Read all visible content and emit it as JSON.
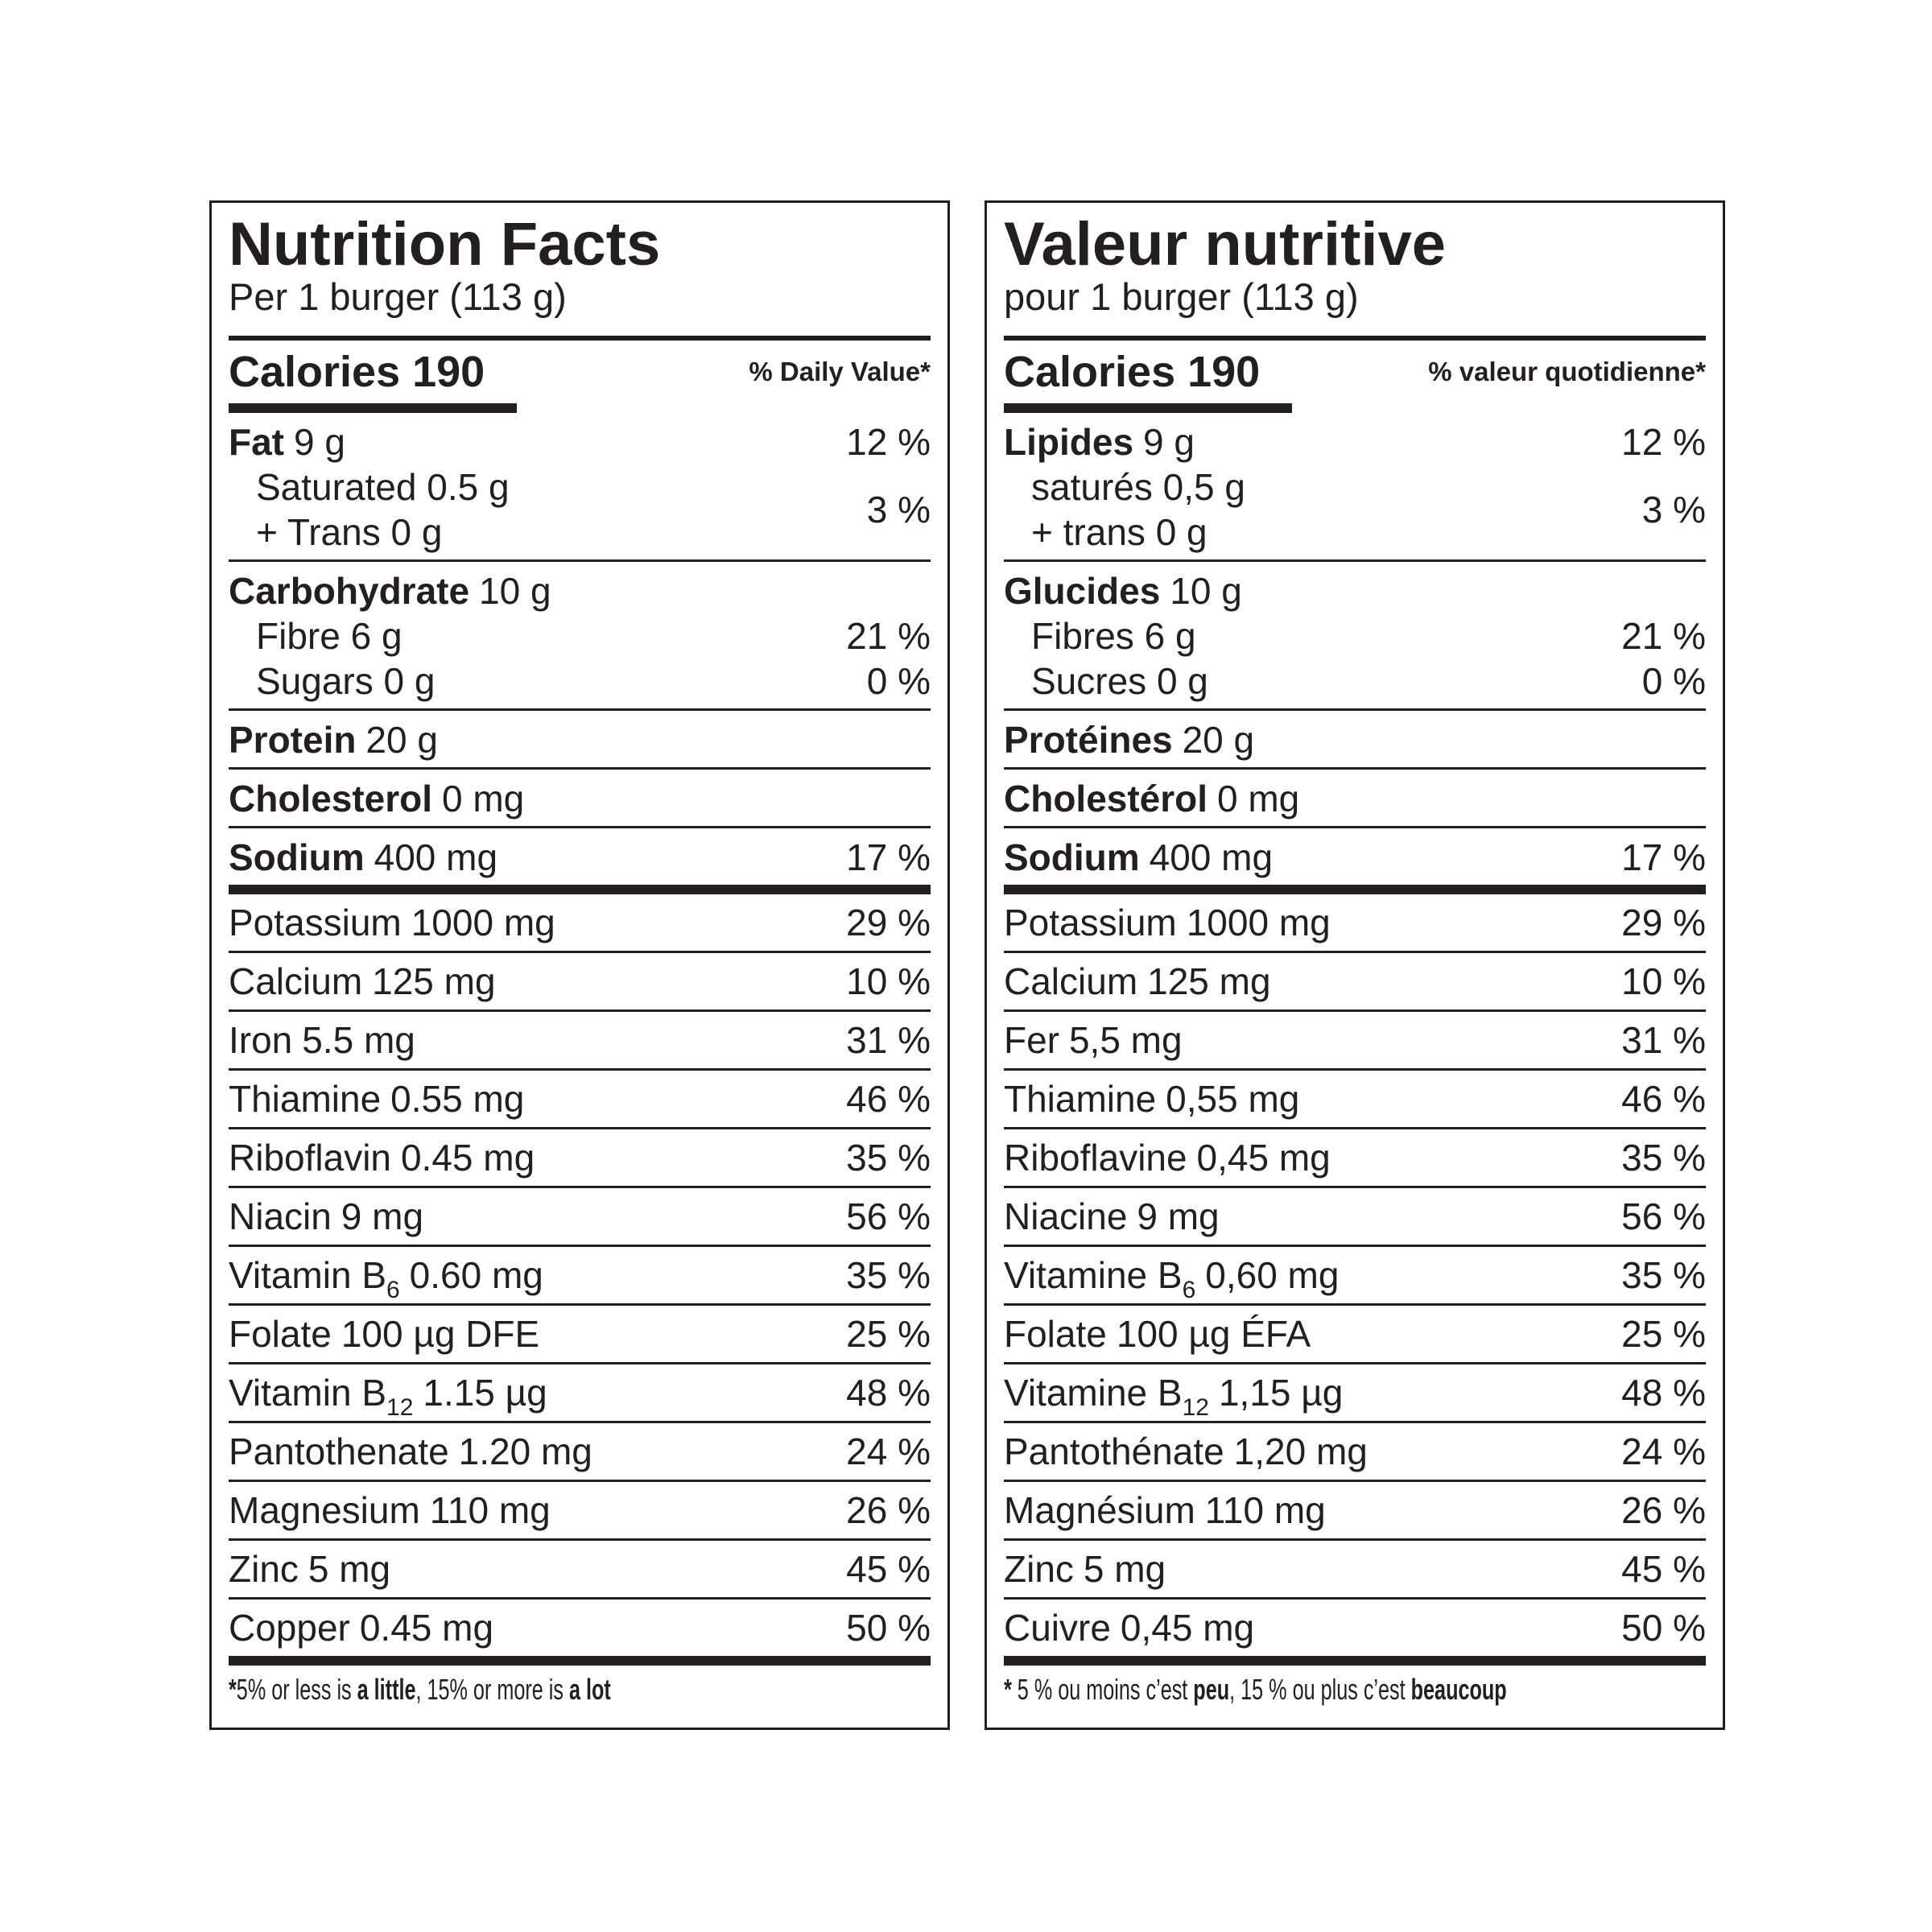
{
  "panels": [
    {
      "title": "Nutrition Facts",
      "serving": "Per 1 burger (113 g)",
      "calories": "Calories 190",
      "dv_header": "% Daily Value*",
      "fat": {
        "name": "Fat",
        "amount": "9 g",
        "dv": "12 %",
        "saturated": "Saturated 0.5 g",
        "trans": "+ Trans 0 g",
        "saturated_trans_dv": "3 %"
      },
      "carbohydrate": {
        "name": "Carbohydrate",
        "amount": "10 g",
        "fibre": "Fibre 6 g",
        "fibre_dv": "21 %",
        "sugars": "Sugars 0 g",
        "sugars_dv": "0 %"
      },
      "protein": {
        "name": "Protein",
        "amount": "20 g"
      },
      "cholesterol": {
        "name": "Cholesterol",
        "amount": "0 mg"
      },
      "sodium": {
        "name": "Sodium",
        "amount": "400 mg",
        "dv": "17 %"
      },
      "nutrients": [
        {
          "name": "Potassium",
          "amount": "1000 mg",
          "dv": "29 %"
        },
        {
          "name": "Calcium",
          "amount": "125 mg",
          "dv": "10 %"
        },
        {
          "name": "Iron",
          "amount": "5.5 mg",
          "dv": "31 %"
        },
        {
          "name": "Thiamine",
          "amount": "0.55 mg",
          "dv": "46 %"
        },
        {
          "name": "Riboflavin",
          "amount": "0.45 mg",
          "dv": "35 %"
        },
        {
          "name": "Niacin",
          "amount": "9 mg",
          "dv": "56 %"
        },
        {
          "name": "Vitamin B",
          "subscript": "6",
          "amount": "0.60 mg",
          "dv": "35 %"
        },
        {
          "name": "Folate",
          "amount": "100 µg DFE",
          "dv": "25 %"
        },
        {
          "name": "Vitamin B",
          "subscript": "12",
          "amount": "1.15 µg",
          "dv": "48 %"
        },
        {
          "name": "Pantothenate",
          "amount": "1.20 mg",
          "dv": "24 %"
        },
        {
          "name": "Magnesium",
          "amount": "110 mg",
          "dv": "26 %"
        },
        {
          "name": "Zinc",
          "amount": "5 mg",
          "dv": "45 %"
        },
        {
          "name": "Copper",
          "amount": "0.45 mg",
          "dv": "50 %"
        }
      ],
      "footnote": [
        "*",
        "5% or less is ",
        "a little",
        ", 15% or more is ",
        "a lot"
      ]
    },
    {
      "title": "Valeur nutritive",
      "serving": "pour 1 burger (113 g)",
      "calories": "Calories 190",
      "dv_header": "% valeur quotidienne*",
      "fat": {
        "name": "Lipides",
        "amount": "9 g",
        "dv": "12 %",
        "saturated": "saturés 0,5 g",
        "trans": "+ trans 0 g",
        "saturated_trans_dv": "3 %"
      },
      "carbohydrate": {
        "name": "Glucides",
        "amount": "10 g",
        "fibre": "Fibres 6 g",
        "fibre_dv": "21 %",
        "sugars": "Sucres 0 g",
        "sugars_dv": "0 %"
      },
      "protein": {
        "name": "Protéines",
        "amount": "20 g"
      },
      "cholesterol": {
        "name": "Cholestérol",
        "amount": "0 mg"
      },
      "sodium": {
        "name": "Sodium",
        "amount": "400 mg",
        "dv": "17 %"
      },
      "nutrients": [
        {
          "name": "Potassium",
          "amount": "1000 mg",
          "dv": "29 %"
        },
        {
          "name": "Calcium",
          "amount": "125 mg",
          "dv": "10 %"
        },
        {
          "name": "Fer",
          "amount": "5,5 mg",
          "dv": "31 %"
        },
        {
          "name": "Thiamine",
          "amount": "0,55 mg",
          "dv": "46 %"
        },
        {
          "name": "Riboflavine",
          "amount": "0,45 mg",
          "dv": "35 %"
        },
        {
          "name": "Niacine",
          "amount": "9 mg",
          "dv": "56 %"
        },
        {
          "name": "Vitamine B",
          "subscript": "6",
          "amount": "0,60 mg",
          "dv": "35 %"
        },
        {
          "name": "Folate",
          "amount": "100 µg ÉFA",
          "dv": "25 %"
        },
        {
          "name": "Vitamine B",
          "subscript": "12",
          "amount": "1,15 µg",
          "dv": "48 %"
        },
        {
          "name": "Pantothénate",
          "amount": "1,20 mg",
          "dv": "24 %"
        },
        {
          "name": "Magnésium",
          "amount": "110 mg",
          "dv": "26 %"
        },
        {
          "name": "Zinc",
          "amount": "5 mg",
          "dv": "45 %"
        },
        {
          "name": "Cuivre",
          "amount": "0,45 mg",
          "dv": "50 %"
        }
      ],
      "footnote": [
        "*",
        " 5 % ou moins c’est ",
        "peu",
        ", 15 % ou plus c’est ",
        "beaucoup"
      ]
    }
  ]
}
